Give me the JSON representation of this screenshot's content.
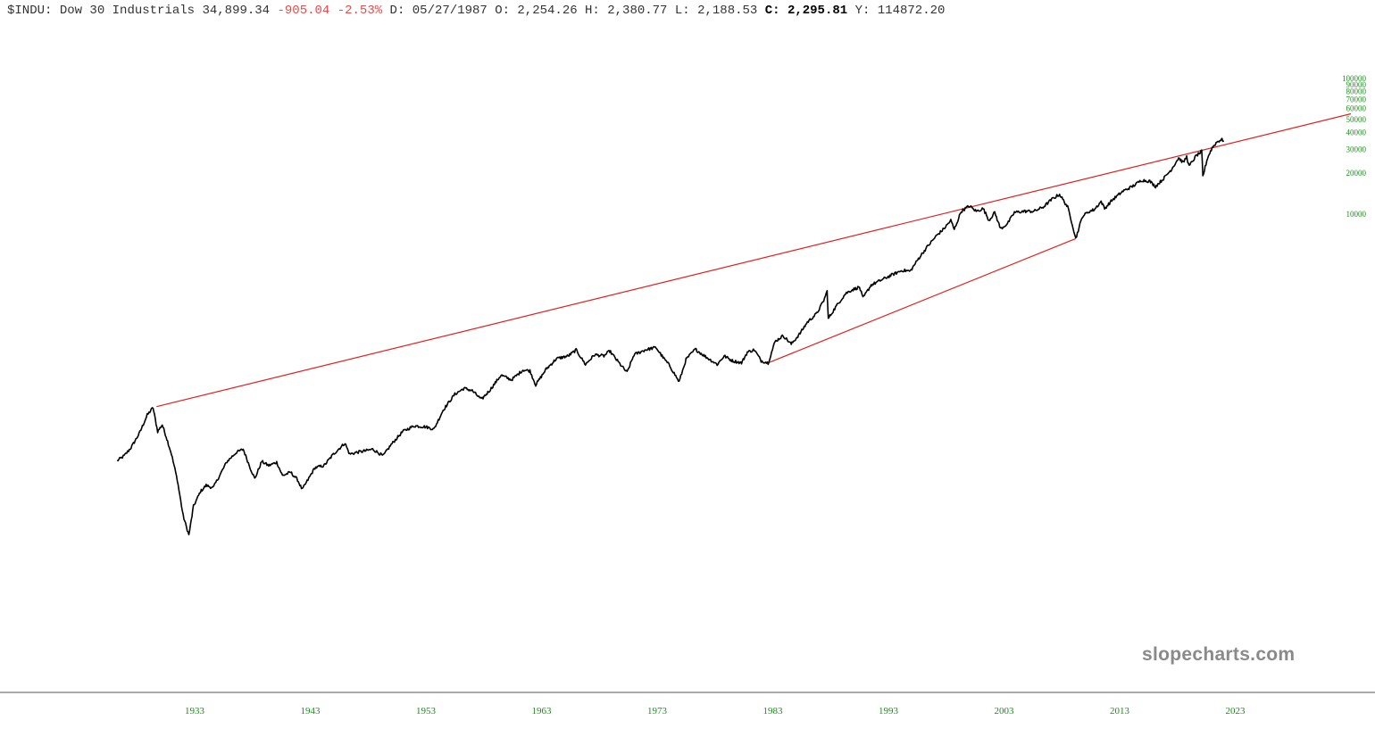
{
  "header": {
    "symbol": "$INDU:",
    "name": "Dow 30 Industrials",
    "last": "34,899.34",
    "change": "-905.04",
    "change_pct": "-2.53%",
    "date_label": "D:",
    "date": "05/27/1987",
    "open_label": "O:",
    "open": "2,254.26",
    "high_label": "H:",
    "high": "2,380.77",
    "low_label": "L:",
    "low": "2,188.53",
    "close_label": "C:",
    "close": "2,295.81",
    "volume_label": "Y:",
    "volume": "114872.20"
  },
  "watermark": "slopecharts.com",
  "colors": {
    "price": "#000000",
    "trendline": "#e02020",
    "ticks": "#1a8f1a",
    "axis": "#555555"
  },
  "chart_data": {
    "type": "line",
    "scale": "log",
    "y_tick_labels": [
      "100000",
      "90000",
      "80000",
      "70000",
      "60000",
      "50000",
      "40000",
      "30000",
      "20000",
      "10000"
    ],
    "y_tick_values": [
      100000,
      90000,
      80000,
      70000,
      60000,
      50000,
      40000,
      30000,
      20000,
      10000
    ],
    "x_tick_labels": [
      "1933",
      "1943",
      "1953",
      "1963",
      "1973",
      "1983",
      "1993",
      "2003",
      "2013",
      "2023"
    ],
    "x_tick_values": [
      1933,
      1943,
      1953,
      1963,
      1973,
      1983,
      1993,
      2003,
      2013,
      2023
    ],
    "xlim": [
      1925,
      2032
    ],
    "ylim": [
      28,
      125000
    ],
    "series": [
      {
        "values_xy": [
          [
            1926.3,
            152
          ],
          [
            1926.9,
            165
          ],
          [
            1927.5,
            190
          ],
          [
            1928.2,
            240
          ],
          [
            1928.9,
            330
          ],
          [
            1929.4,
            375
          ],
          [
            1929.8,
            250
          ],
          [
            1930.2,
            280
          ],
          [
            1930.6,
            220
          ],
          [
            1931.0,
            170
          ],
          [
            1931.5,
            110
          ],
          [
            1932.0,
            60
          ],
          [
            1932.5,
            43
          ],
          [
            1932.9,
            70
          ],
          [
            1933.5,
            90
          ],
          [
            1934.0,
            100
          ],
          [
            1934.6,
            96
          ],
          [
            1935.2,
            120
          ],
          [
            1935.8,
            150
          ],
          [
            1936.6,
            175
          ],
          [
            1937.2,
            185
          ],
          [
            1937.8,
            135
          ],
          [
            1938.2,
            112
          ],
          [
            1938.8,
            150
          ],
          [
            1939.4,
            140
          ],
          [
            1940.1,
            148
          ],
          [
            1940.6,
            118
          ],
          [
            1941.3,
            125
          ],
          [
            1941.9,
            110
          ],
          [
            1942.3,
            93
          ],
          [
            1942.8,
            110
          ],
          [
            1943.4,
            135
          ],
          [
            1944.2,
            140
          ],
          [
            1945.0,
            170
          ],
          [
            1946.0,
            205
          ],
          [
            1946.4,
            170
          ],
          [
            1947.0,
            175
          ],
          [
            1947.8,
            180
          ],
          [
            1948.4,
            185
          ],
          [
            1949.3,
            165
          ],
          [
            1950.0,
            200
          ],
          [
            1951.0,
            250
          ],
          [
            1952.0,
            275
          ],
          [
            1953.0,
            270
          ],
          [
            1953.7,
            260
          ],
          [
            1954.5,
            360
          ],
          [
            1955.5,
            470
          ],
          [
            1956.3,
            520
          ],
          [
            1957.0,
            500
          ],
          [
            1957.8,
            430
          ],
          [
            1958.5,
            500
          ],
          [
            1959.5,
            650
          ],
          [
            1960.4,
            600
          ],
          [
            1961.4,
            710
          ],
          [
            1962.0,
            700
          ],
          [
            1962.5,
            550
          ],
          [
            1963.4,
            720
          ],
          [
            1964.3,
            860
          ],
          [
            1965.3,
            900
          ],
          [
            1966.0,
            995
          ],
          [
            1966.8,
            780
          ],
          [
            1967.6,
            920
          ],
          [
            1968.4,
            900
          ],
          [
            1968.9,
            980
          ],
          [
            1969.7,
            800
          ],
          [
            1970.4,
            680
          ],
          [
            1971.0,
            920
          ],
          [
            1972.0,
            1000
          ],
          [
            1972.9,
            1040
          ],
          [
            1973.5,
            880
          ],
          [
            1974.1,
            760
          ],
          [
            1974.9,
            580
          ],
          [
            1975.5,
            850
          ],
          [
            1976.3,
            1010
          ],
          [
            1977.1,
            900
          ],
          [
            1978.2,
            780
          ],
          [
            1978.8,
            900
          ],
          [
            1979.5,
            830
          ],
          [
            1980.3,
            800
          ],
          [
            1980.8,
            960
          ],
          [
            1981.4,
            1000
          ],
          [
            1982.0,
            830
          ],
          [
            1982.6,
            800
          ],
          [
            1983.2,
            1150
          ],
          [
            1983.9,
            1270
          ],
          [
            1984.6,
            1100
          ],
          [
            1985.3,
            1300
          ],
          [
            1986.0,
            1600
          ],
          [
            1986.8,
            1850
          ],
          [
            1987.4,
            2300
          ],
          [
            1987.7,
            2700
          ],
          [
            1987.8,
            1700
          ],
          [
            1988.5,
            2100
          ],
          [
            1989.3,
            2600
          ],
          [
            1989.8,
            2750
          ],
          [
            1990.5,
            2900
          ],
          [
            1990.8,
            2400
          ],
          [
            1991.5,
            3000
          ],
          [
            1992.5,
            3300
          ],
          [
            1993.4,
            3600
          ],
          [
            1994.2,
            3850
          ],
          [
            1994.9,
            3800
          ],
          [
            1995.6,
            4700
          ],
          [
            1996.4,
            5800
          ],
          [
            1997.2,
            7000
          ],
          [
            1997.8,
            7800
          ],
          [
            1998.4,
            9000
          ],
          [
            1998.7,
            7700
          ],
          [
            1999.3,
            10500
          ],
          [
            2000.0,
            11500
          ],
          [
            2000.6,
            10500
          ],
          [
            2001.2,
            11000
          ],
          [
            2001.7,
            9000
          ],
          [
            2002.2,
            10300
          ],
          [
            2002.7,
            7800
          ],
          [
            2003.3,
            8500
          ],
          [
            2003.9,
            10300
          ],
          [
            2004.8,
            10500
          ],
          [
            2005.6,
            10500
          ],
          [
            2006.4,
            11300
          ],
          [
            2007.2,
            13000
          ],
          [
            2007.8,
            14000
          ],
          [
            2008.5,
            11300
          ],
          [
            2008.9,
            8500
          ],
          [
            2009.2,
            6600
          ],
          [
            2009.8,
            9700
          ],
          [
            2010.4,
            10500
          ],
          [
            2010.8,
            10800
          ],
          [
            2011.4,
            12400
          ],
          [
            2011.7,
            11000
          ],
          [
            2012.4,
            12800
          ],
          [
            2013.3,
            14800
          ],
          [
            2014.1,
            16000
          ],
          [
            2014.9,
            17800
          ],
          [
            2015.6,
            17500
          ],
          [
            2016.1,
            16000
          ],
          [
            2016.8,
            18300
          ],
          [
            2017.5,
            21500
          ],
          [
            2018.1,
            26000
          ],
          [
            2018.5,
            24000
          ],
          [
            2018.8,
            26500
          ],
          [
            2019.0,
            22500
          ],
          [
            2019.6,
            26800
          ],
          [
            2020.1,
            29000
          ],
          [
            2020.2,
            19000
          ],
          [
            2020.6,
            26000
          ],
          [
            2021.0,
            30800
          ],
          [
            2021.4,
            34000
          ],
          [
            2021.8,
            35500
          ],
          [
            2022.0,
            34900
          ]
        ]
      }
    ],
    "trendlines": [
      {
        "from": [
          1929.7,
          381
        ],
        "to": [
          2033,
          55000
        ]
      },
      {
        "from": [
          1982.6,
          800
        ],
        "to": [
          2009.2,
          6600
        ]
      }
    ],
    "grid": false,
    "legend": "none"
  }
}
